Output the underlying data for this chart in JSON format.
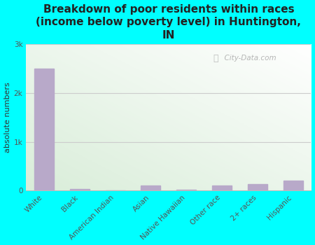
{
  "categories": [
    "White",
    "Black",
    "American Indian",
    "Asian",
    "Native Hawaiian",
    "Other race",
    "2+ races",
    "Hispanic"
  ],
  "values": [
    2500,
    30,
    5,
    100,
    20,
    100,
    130,
    200
  ],
  "bar_color": "#b8a9c9",
  "title": "Breakdown of poor residents within races\n(income below poverty level) in Huntington,\nIN",
  "ylabel": "absolute numbers",
  "ylim": [
    0,
    3000
  ],
  "ytick_labels": [
    "0",
    "1k",
    "2k",
    "3k"
  ],
  "ytick_values": [
    0,
    1000,
    2000,
    3000
  ],
  "bg_color": "#00ffff",
  "plot_bg_topleft": "#d8ead8",
  "plot_bg_bottomright": "#f5fff5",
  "plot_bg_white": "#ffffff",
  "grid_color": "#dddddd",
  "watermark": "City-Data.com",
  "title_fontsize": 11,
  "ylabel_fontsize": 8,
  "tick_fontsize": 7.5,
  "title_color": "#222222"
}
